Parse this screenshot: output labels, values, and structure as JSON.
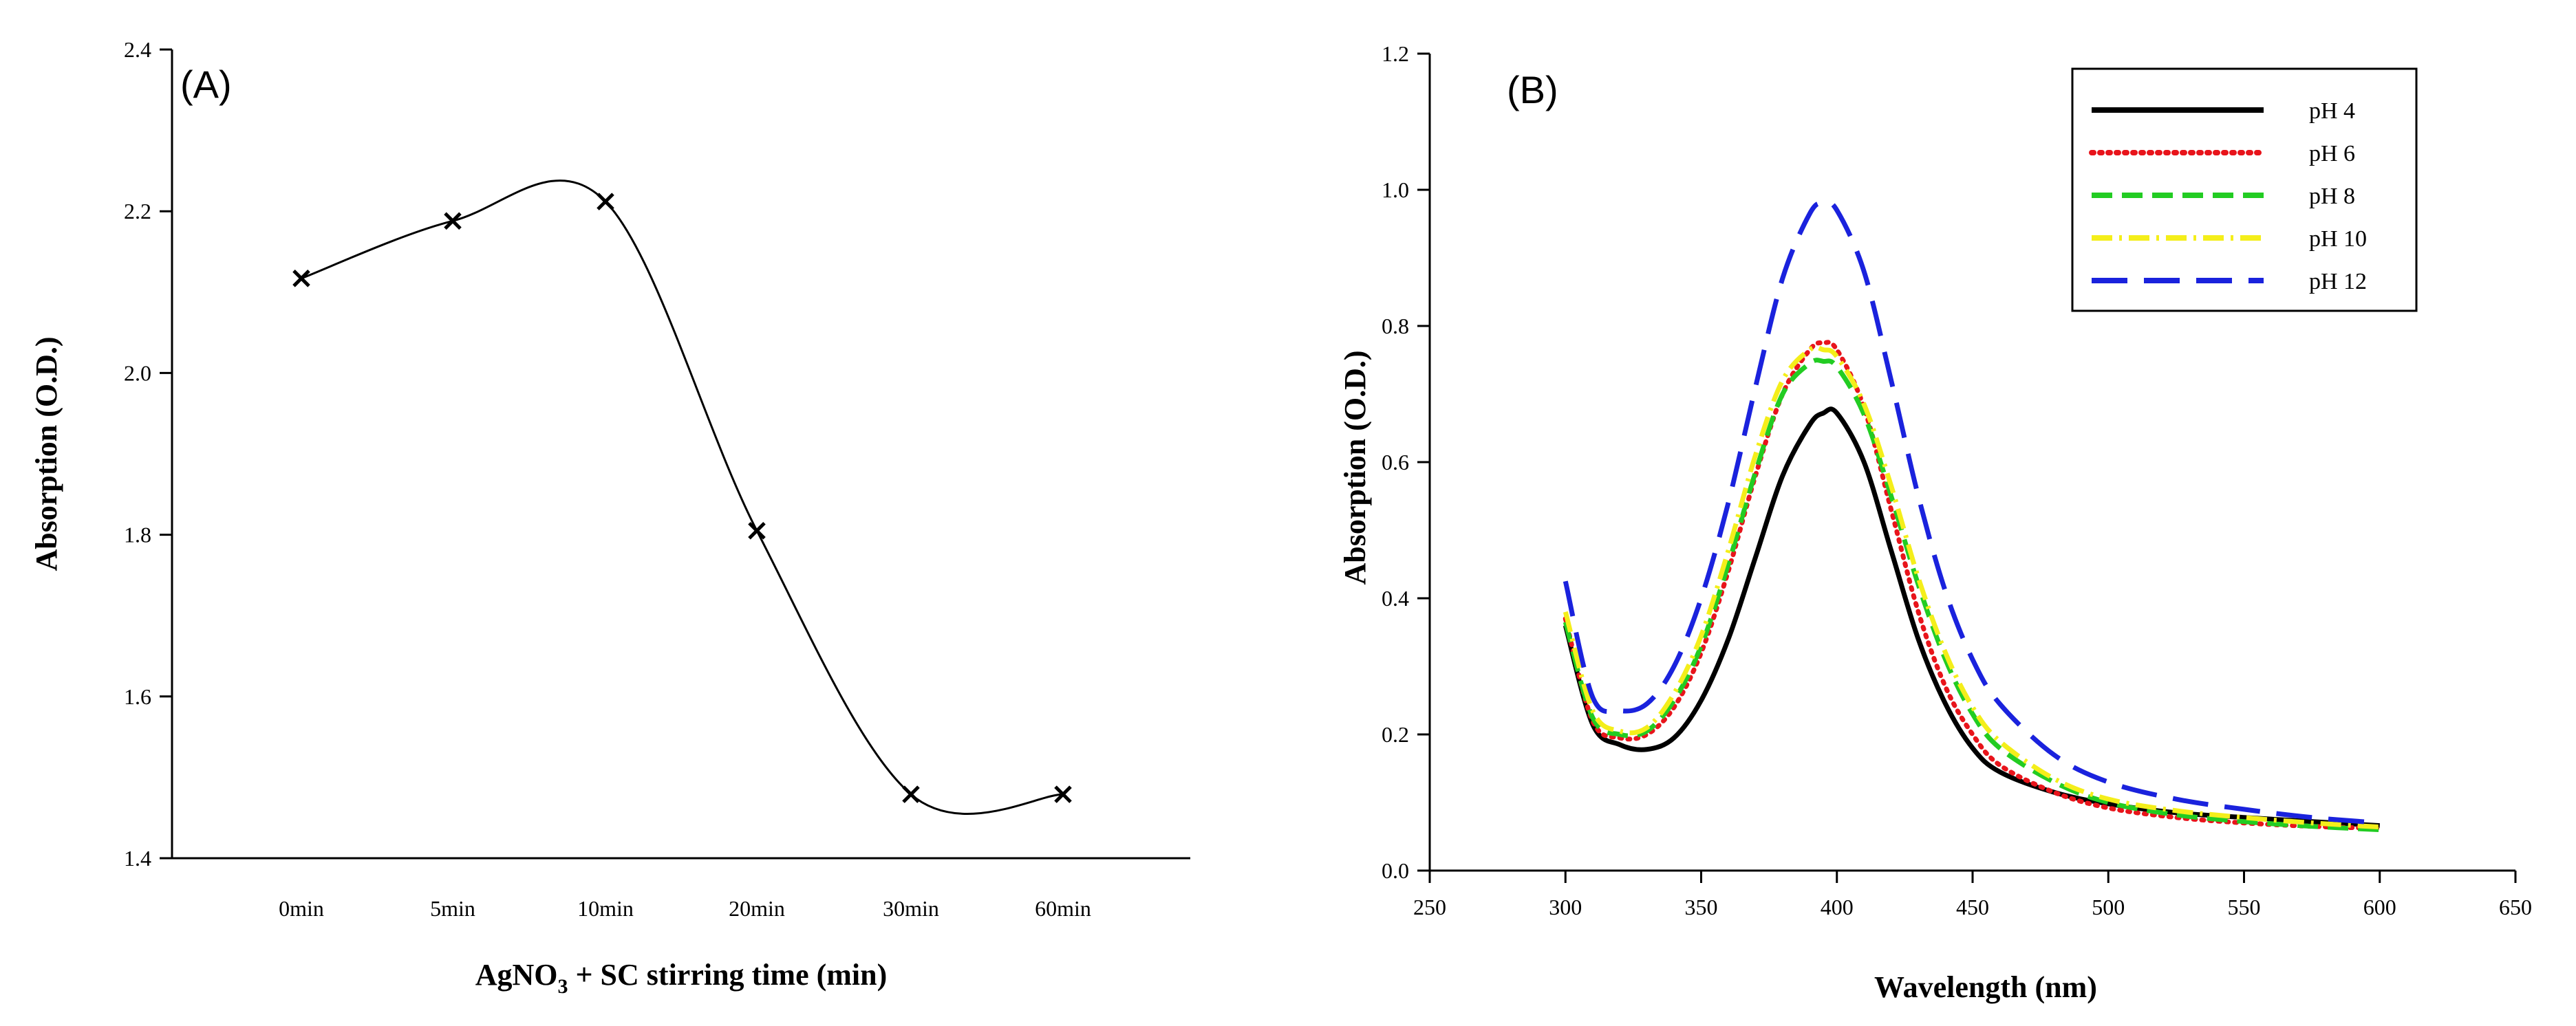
{
  "chart_data": [
    {
      "type": "line",
      "panel_label": "(A)",
      "title": "",
      "xlabel_main": "AgNO",
      "xlabel_sub": "3",
      "xlabel_rest": " + SC stirring time (min)",
      "ylabel": "Absorption (O.D.)",
      "categories": [
        "0min",
        "5min",
        "10min",
        "20min",
        "30min",
        "60min"
      ],
      "values": [
        2.117,
        2.188,
        2.212,
        1.805,
        1.479,
        1.479
      ],
      "ylim": [
        1.4,
        2.4
      ],
      "yticks": [
        "1.4",
        "1.6",
        "1.8",
        "2.0",
        "2.2",
        "2.4"
      ],
      "marker": "x",
      "grid": false
    },
    {
      "type": "line",
      "panel_label": "(B)",
      "title": "",
      "xlabel": "Wavelength (nm)",
      "ylabel": "Absorption (O.D.)",
      "xlim": [
        250,
        650
      ],
      "ylim": [
        0.0,
        1.2
      ],
      "xticks": [
        "250",
        "300",
        "350",
        "400",
        "450",
        "500",
        "550",
        "600",
        "650"
      ],
      "yticks": [
        "0.0",
        "0.2",
        "0.4",
        "0.6",
        "0.8",
        "1.0",
        "1.2"
      ],
      "x": [
        300,
        310,
        320,
        330,
        340,
        350,
        360,
        370,
        380,
        390,
        395,
        400,
        410,
        420,
        430,
        440,
        450,
        460,
        480,
        500,
        525,
        550,
        575,
        600
      ],
      "legend_position": "top-right",
      "grid": false,
      "series": [
        {
          "name": "pH 4",
          "color": "#000000",
          "dash": "solid",
          "values": [
            0.36,
            0.215,
            0.185,
            0.178,
            0.195,
            0.25,
            0.34,
            0.46,
            0.58,
            0.655,
            0.672,
            0.672,
            0.6,
            0.47,
            0.34,
            0.245,
            0.18,
            0.145,
            0.115,
            0.098,
            0.085,
            0.078,
            0.072,
            0.066
          ]
        },
        {
          "name": "pH 6",
          "color": "#e8141b",
          "dash": "dotted",
          "values": [
            0.37,
            0.22,
            0.195,
            0.2,
            0.24,
            0.32,
            0.44,
            0.58,
            0.7,
            0.765,
            0.775,
            0.765,
            0.68,
            0.53,
            0.38,
            0.27,
            0.2,
            0.155,
            0.115,
            0.092,
            0.078,
            0.07,
            0.065,
            0.062
          ]
        },
        {
          "name": "pH 8",
          "color": "#22cc22",
          "dash": "dashed",
          "values": [
            0.365,
            0.225,
            0.2,
            0.205,
            0.25,
            0.33,
            0.45,
            0.585,
            0.7,
            0.745,
            0.748,
            0.74,
            0.67,
            0.55,
            0.42,
            0.31,
            0.23,
            0.18,
            0.13,
            0.1,
            0.082,
            0.072,
            0.065,
            0.06
          ]
        },
        {
          "name": "pH 10",
          "color": "#f4ee1a",
          "dash": "dashdot",
          "values": [
            0.38,
            0.235,
            0.205,
            0.21,
            0.26,
            0.345,
            0.47,
            0.61,
            0.72,
            0.765,
            0.765,
            0.755,
            0.685,
            0.565,
            0.43,
            0.32,
            0.24,
            0.19,
            0.135,
            0.105,
            0.088,
            0.078,
            0.07,
            0.064
          ]
        },
        {
          "name": "pH 12",
          "color": "#1a22dd",
          "dash": "longdash",
          "values": [
            0.425,
            0.255,
            0.235,
            0.245,
            0.3,
            0.4,
            0.54,
            0.71,
            0.87,
            0.965,
            0.98,
            0.97,
            0.88,
            0.72,
            0.55,
            0.41,
            0.31,
            0.245,
            0.17,
            0.13,
            0.105,
            0.09,
            0.078,
            0.07
          ]
        }
      ]
    }
  ]
}
